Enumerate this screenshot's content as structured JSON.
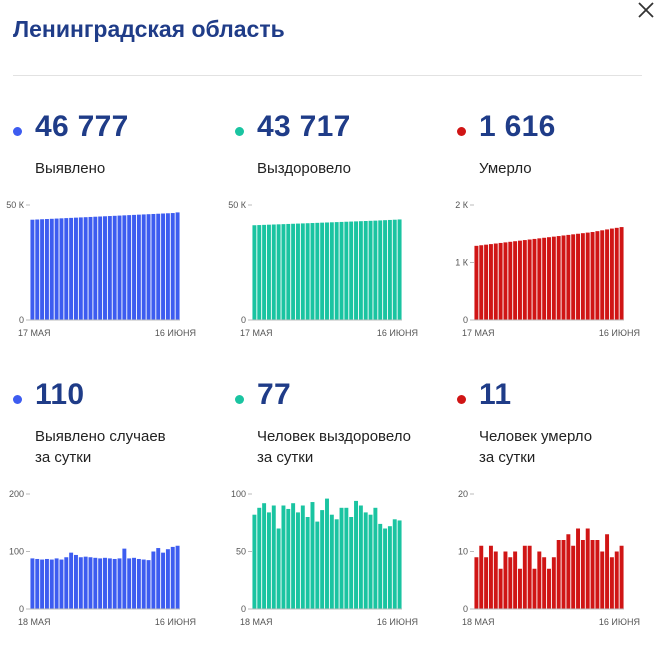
{
  "page": {
    "title": "Ленинградская область"
  },
  "colors": {
    "blue": "#3d5cf0",
    "teal": "#1ac4a1",
    "red": "#d01515",
    "title": "#1f3c88"
  },
  "icons": {
    "close": "close-icon"
  },
  "stats": [
    {
      "id": "detected",
      "value": "46 777",
      "label_lines": [
        "Выявлено"
      ],
      "color": "#3d5cf0"
    },
    {
      "id": "recovered",
      "value": "43 717",
      "label_lines": [
        "Выздоровело"
      ],
      "color": "#1ac4a1"
    },
    {
      "id": "died",
      "value": "1 616",
      "label_lines": [
        "Умерло"
      ],
      "color": "#d01515"
    },
    {
      "id": "detected_daily",
      "value": "110",
      "label_lines": [
        "Выявлено случаев",
        "за сутки"
      ],
      "color": "#3d5cf0"
    },
    {
      "id": "recovered_daily",
      "value": "77",
      "label_lines": [
        "Человек выздоровело",
        "за сутки"
      ],
      "color": "#1ac4a1"
    },
    {
      "id": "died_daily",
      "value": "11",
      "label_lines": [
        "Человек умерло",
        "за сутки"
      ],
      "color": "#d01515"
    }
  ],
  "chart_data": [
    {
      "type": "bar",
      "name": "detected",
      "color": "#3d5cf0",
      "x_start_label": "17 МАЯ",
      "x_end_label": "16 ИЮНЯ",
      "yticks": [
        {
          "value": 0,
          "label": "0"
        },
        {
          "value": 50000,
          "label": "50 К"
        }
      ],
      "ylim": [
        0,
        50000
      ],
      "values": [
        43600,
        43700,
        43800,
        43900,
        44000,
        44100,
        44200,
        44300,
        44400,
        44500,
        44600,
        44700,
        44800,
        44900,
        45000,
        45100,
        45200,
        45300,
        45400,
        45500,
        45600,
        45700,
        45800,
        45900,
        46000,
        46100,
        46200,
        46300,
        46400,
        46500,
        46777
      ]
    },
    {
      "type": "bar",
      "name": "recovered",
      "color": "#1ac4a1",
      "x_start_label": "17 МАЯ",
      "x_end_label": "16 ИЮНЯ",
      "yticks": [
        {
          "value": 0,
          "label": "0"
        },
        {
          "value": 50000,
          "label": "50 К"
        }
      ],
      "ylim": [
        0,
        50000
      ],
      "values": [
        41200,
        41280,
        41360,
        41440,
        41520,
        41600,
        41680,
        41760,
        41840,
        41920,
        42000,
        42080,
        42160,
        42240,
        42320,
        42400,
        42480,
        42560,
        42640,
        42720,
        42800,
        42880,
        42960,
        43040,
        43120,
        43200,
        43300,
        43400,
        43500,
        43600,
        43717
      ]
    },
    {
      "type": "bar",
      "name": "died",
      "color": "#d01515",
      "x_start_label": "17 МАЯ",
      "x_end_label": "16 ИЮНЯ",
      "yticks": [
        {
          "value": 0,
          "label": "0"
        },
        {
          "value": 1000,
          "label": "1 К"
        },
        {
          "value": 2000,
          "label": "2 К"
        }
      ],
      "ylim": [
        0,
        2000
      ],
      "values": [
        1290,
        1300,
        1310,
        1320,
        1330,
        1340,
        1350,
        1360,
        1370,
        1380,
        1390,
        1400,
        1410,
        1420,
        1430,
        1440,
        1450,
        1460,
        1470,
        1480,
        1490,
        1500,
        1510,
        1520,
        1530,
        1545,
        1560,
        1575,
        1590,
        1603,
        1616
      ]
    },
    {
      "type": "bar",
      "name": "detected_daily",
      "color": "#3d5cf0",
      "x_start_label": "18 МАЯ",
      "x_end_label": "16 ИЮНЯ",
      "yticks": [
        {
          "value": 0,
          "label": "0"
        },
        {
          "value": 100,
          "label": "100"
        },
        {
          "value": 200,
          "label": "200"
        }
      ],
      "ylim": [
        0,
        200
      ],
      "values": [
        88,
        87,
        86,
        87,
        86,
        88,
        86,
        90,
        98,
        94,
        90,
        91,
        90,
        89,
        88,
        89,
        88,
        87,
        88,
        105,
        88,
        89,
        87,
        86,
        85,
        100,
        106,
        98,
        104,
        108,
        110
      ]
    },
    {
      "type": "bar",
      "name": "recovered_daily",
      "color": "#1ac4a1",
      "x_start_label": "18 МАЯ",
      "x_end_label": "16 ИЮНЯ",
      "yticks": [
        {
          "value": 0,
          "label": "0"
        },
        {
          "value": 50,
          "label": "50"
        },
        {
          "value": 100,
          "label": "100"
        }
      ],
      "ylim": [
        0,
        100
      ],
      "values": [
        82,
        88,
        92,
        84,
        90,
        70,
        90,
        87,
        92,
        84,
        90,
        80,
        93,
        76,
        86,
        96,
        82,
        78,
        88,
        88,
        80,
        94,
        90,
        84,
        82,
        88,
        74,
        70,
        72,
        78,
        77
      ]
    },
    {
      "type": "bar",
      "name": "died_daily",
      "color": "#d01515",
      "x_start_label": "18 МАЯ",
      "x_end_label": "16 ИЮНЯ",
      "yticks": [
        {
          "value": 0,
          "label": "0"
        },
        {
          "value": 10,
          "label": "10"
        },
        {
          "value": 20,
          "label": "20"
        }
      ],
      "ylim": [
        0,
        20
      ],
      "values": [
        9,
        11,
        9,
        11,
        10,
        7,
        10,
        9,
        10,
        7,
        11,
        11,
        7,
        10,
        9,
        7,
        9,
        12,
        12,
        13,
        11,
        14,
        12,
        14,
        12,
        12,
        10,
        13,
        9,
        10,
        11
      ]
    }
  ]
}
